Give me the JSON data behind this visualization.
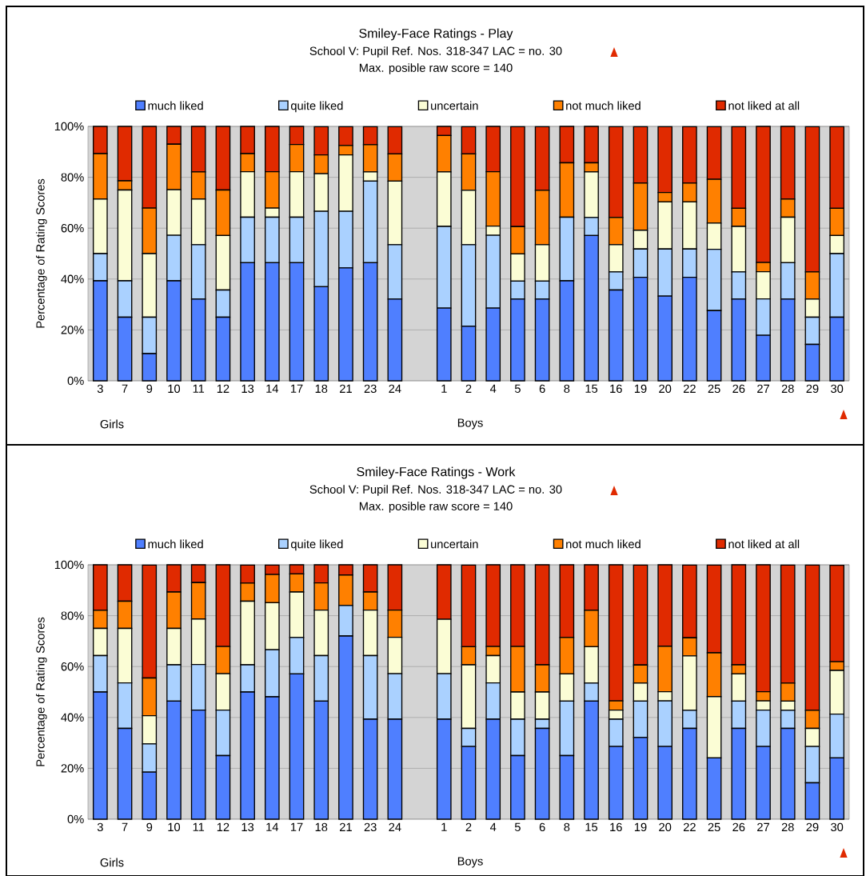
{
  "chart_data": [
    {
      "type": "bar",
      "stacked": true,
      "title": "Smiley-Face Ratings - Play",
      "subtitle": "School V:   Pupil Ref. Nos. 318-347   LAC = no. 30",
      "annotations": [
        "Max. posible raw score = 140",
        "Girls",
        "Boys"
      ],
      "ylabel": "Percentage of Rating Scores",
      "ylim": [
        0,
        100
      ],
      "yticks": [
        {
          "value": 0,
          "label": "0%"
        },
        {
          "value": 20,
          "label": "20%"
        },
        {
          "value": 40,
          "label": "40%"
        },
        {
          "value": 60,
          "label": "60%"
        },
        {
          "value": 80,
          "label": "80%"
        },
        {
          "value": 100,
          "label": "100%"
        }
      ],
      "grid": "y",
      "legend": "top",
      "categories": [
        "3",
        "7",
        "9",
        "10",
        "11",
        "12",
        "13",
        "14",
        "17",
        "18",
        "21",
        "23",
        "24",
        null,
        "1",
        "2",
        "4",
        "5",
        "6",
        "8",
        "15",
        "16",
        "19",
        "20",
        "22",
        "25",
        "26",
        "27",
        "28",
        "29",
        "30"
      ],
      "series": [
        {
          "name": "much liked",
          "color": "#4f7fff",
          "values": [
            39.3,
            25,
            10.7,
            39.3,
            32.1,
            25,
            46.4,
            46.4,
            46.4,
            37,
            44.4,
            46.4,
            32.1,
            null,
            28.6,
            21.4,
            28.6,
            32.1,
            32.1,
            39.3,
            57.1,
            35.7,
            40.7,
            33.3,
            40.7,
            27.6,
            32.1,
            17.9,
            32.1,
            14.3,
            25
          ]
        },
        {
          "name": "quite liked",
          "color": "#aad1ff",
          "values": [
            10.7,
            14.3,
            14.3,
            17.9,
            21.4,
            10.7,
            17.9,
            17.9,
            17.9,
            29.6,
            22.2,
            32.1,
            21.4,
            null,
            32.1,
            32.1,
            28.6,
            7.1,
            7.1,
            25,
            7.1,
            7.1,
            11.1,
            18.5,
            11.1,
            24.1,
            10.7,
            14.3,
            14.3,
            10.7,
            25
          ]
        },
        {
          "name": "uncertain",
          "color": "#fbfdd5",
          "values": [
            21.4,
            35.7,
            25,
            17.9,
            17.9,
            21.4,
            17.9,
            3.6,
            17.9,
            14.8,
            22.2,
            3.6,
            25,
            null,
            21.4,
            21.4,
            3.6,
            10.7,
            14.3,
            0,
            17.9,
            10.7,
            7.4,
            18.5,
            18.5,
            10.3,
            17.9,
            10.7,
            17.9,
            7.1,
            7.1
          ]
        },
        {
          "name": "not much liked",
          "color": "#ff8000",
          "values": [
            17.9,
            3.6,
            17.9,
            17.9,
            10.7,
            17.9,
            7.1,
            14.3,
            10.7,
            7.4,
            3.7,
            10.7,
            10.7,
            null,
            14.3,
            14.3,
            21.4,
            10.7,
            21.4,
            21.4,
            3.6,
            10.7,
            18.5,
            3.7,
            7.4,
            17.2,
            7.1,
            3.6,
            7.1,
            10.7,
            10.7
          ]
        },
        {
          "name": "not liked at all",
          "color": "#e02a00",
          "values": [
            10.7,
            21.4,
            32.1,
            7.0,
            17.9,
            25,
            10.7,
            17.8,
            7.1,
            11.1,
            7.4,
            7.1,
            10.7,
            null,
            3.6,
            10.7,
            17.8,
            39.3,
            25,
            14.3,
            14.3,
            35.7,
            22.2,
            25.9,
            22.2,
            20.7,
            32.1,
            53.5,
            28.6,
            57.1,
            32.1
          ]
        }
      ]
    },
    {
      "type": "bar",
      "stacked": true,
      "title": "Smiley-Face Ratings - Work",
      "subtitle": "School V:   Pupil Ref. Nos. 318-347   LAC = no. 30",
      "annotations": [
        "Max. posible raw score = 140",
        "Girls",
        "Boys"
      ],
      "ylabel": "Percentage of Rating Scores",
      "ylim": [
        0,
        100
      ],
      "yticks": [
        {
          "value": 0,
          "label": "0%"
        },
        {
          "value": 20,
          "label": "20%"
        },
        {
          "value": 40,
          "label": "40%"
        },
        {
          "value": 60,
          "label": "60%"
        },
        {
          "value": 80,
          "label": "80%"
        },
        {
          "value": 100,
          "label": "100%"
        }
      ],
      "grid": "y",
      "legend": "top",
      "categories": [
        "3",
        "7",
        "9",
        "10",
        "11",
        "12",
        "13",
        "14",
        "17",
        "18",
        "21",
        "23",
        "24",
        null,
        "1",
        "2",
        "4",
        "5",
        "6",
        "8",
        "15",
        "16",
        "19",
        "20",
        "22",
        "25",
        "26",
        "27",
        "28",
        "29",
        "30"
      ],
      "series": [
        {
          "name": "much liked",
          "color": "#4f7fff",
          "values": [
            50,
            35.7,
            18.5,
            46.4,
            42.9,
            25,
            50,
            48.1,
            57.1,
            46.4,
            72,
            39.3,
            39.3,
            null,
            39.3,
            28.6,
            39.3,
            25,
            35.7,
            25,
            46.4,
            28.6,
            32.1,
            28.6,
            35.7,
            24.1,
            35.7,
            28.6,
            35.7,
            14.3,
            24.1
          ]
        },
        {
          "name": "quite liked",
          "color": "#aad1ff",
          "values": [
            14.3,
            17.9,
            11.1,
            14.3,
            17.9,
            17.9,
            10.7,
            18.5,
            14.3,
            17.9,
            12,
            25,
            17.9,
            null,
            17.9,
            7.1,
            14.3,
            14.3,
            3.6,
            21.4,
            7.1,
            10.7,
            14.3,
            17.9,
            7.1,
            0,
            10.7,
            14.3,
            7.1,
            14.3,
            17.2
          ]
        },
        {
          "name": "uncertain",
          "color": "#fbfdd5",
          "values": [
            10.7,
            21.4,
            11.1,
            14.3,
            17.9,
            14.3,
            25,
            18.5,
            17.9,
            17.9,
            0,
            17.9,
            14.3,
            null,
            21.4,
            25,
            10.7,
            10.7,
            10.7,
            10.7,
            14.3,
            3.6,
            7.1,
            3.6,
            21.4,
            24.1,
            10.7,
            3.6,
            3.6,
            7.1,
            17.2
          ]
        },
        {
          "name": "not much liked",
          "color": "#ff8000",
          "values": [
            7.1,
            10.7,
            14.8,
            14.3,
            14.3,
            10.7,
            7.1,
            11.1,
            7.1,
            10.7,
            12,
            7.1,
            10.7,
            null,
            0,
            7.1,
            3.6,
            17.9,
            10.7,
            14.3,
            14.3,
            3.6,
            7.1,
            17.9,
            7.1,
            17.2,
            3.6,
            3.6,
            7.1,
            7.1,
            3.4
          ]
        },
        {
          "name": "not liked at all",
          "color": "#e02a00",
          "values": [
            17.9,
            14.3,
            44.4,
            10.7,
            7.0,
            32.1,
            7.1,
            3.7,
            3.6,
            7.1,
            4,
            10.7,
            17.8,
            null,
            21.4,
            32.1,
            32.1,
            32.1,
            39.3,
            28.6,
            17.9,
            53.5,
            39.3,
            32.0,
            28.6,
            34.5,
            39.3,
            49.9,
            46.4,
            57.1,
            37.9
          ]
        }
      ]
    }
  ]
}
